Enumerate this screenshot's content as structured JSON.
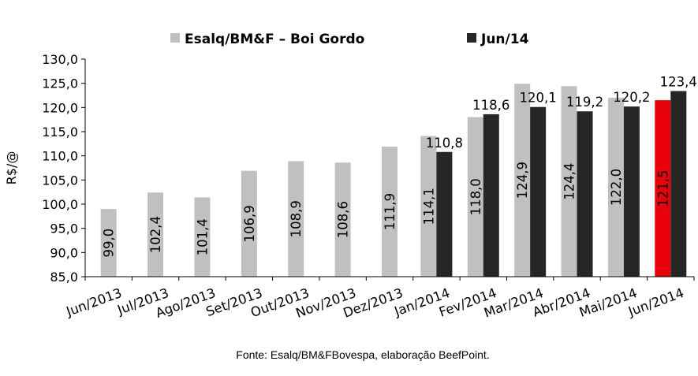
{
  "chart_data": {
    "type": "bar",
    "title": "",
    "xlabel": "",
    "ylabel": "R$/@",
    "ylim": [
      85,
      130
    ],
    "yticks": [
      "85,0",
      "90,0",
      "95,0",
      "100,0",
      "105,0",
      "110,0",
      "115,0",
      "120,0",
      "125,0",
      "130,0"
    ],
    "categories": [
      "Jun/2013",
      "Jul/2013",
      "Ago/2013",
      "Set/2013",
      "Out/2013",
      "Nov/2013",
      "Dez/2013",
      "Jan/2014",
      "Fev/2014",
      "Mar/2014",
      "Abr/2014",
      "Mai/2014",
      "Jun/2014"
    ],
    "series": [
      {
        "name": "Esalq/BM&F – Boi Gordo",
        "color": "#c0c0c0",
        "values": [
          99.0,
          102.4,
          101.4,
          106.9,
          108.9,
          108.6,
          111.9,
          114.1,
          118.0,
          124.9,
          124.4,
          122.0,
          121.5
        ],
        "labels": [
          "99,0",
          "102,4",
          "101,4",
          "106,9",
          "108,9",
          "108,6",
          "111,9",
          "114,1",
          "118,0",
          "124,9",
          "124,4",
          "122,0",
          "121,5"
        ],
        "highlight": {
          "index": 12,
          "color": "#e8000b"
        }
      },
      {
        "name": "Jun/14",
        "color": "#262626",
        "values": [
          null,
          null,
          null,
          null,
          null,
          null,
          null,
          110.8,
          118.6,
          120.1,
          119.2,
          120.2,
          123.4
        ],
        "labels": [
          null,
          null,
          null,
          null,
          null,
          null,
          null,
          "110,8",
          "118,6",
          "120,1",
          "119,2",
          "120,2",
          "123,4"
        ]
      }
    ],
    "legend_position": "top",
    "grid": false
  },
  "source_note": "Fonte: Esalq/BM&FBovespa, elaboração BeefPoint."
}
